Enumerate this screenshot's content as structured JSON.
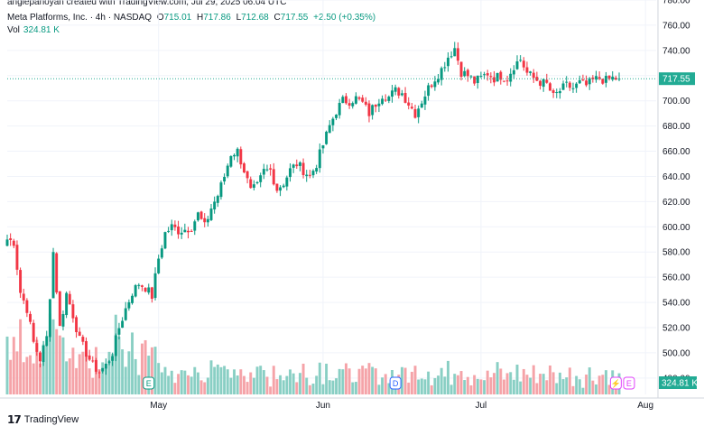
{
  "header": {
    "credit": "angiepanoyan created with TradingView.com, Jul 29, 2025 06:04 UTC",
    "symbol": "Meta Platforms, Inc. · 4h · NASDAQ",
    "o_label": "O",
    "o_value": "715.01",
    "h_label": "H",
    "h_value": "717.86",
    "l_label": "L",
    "l_value": "712.68",
    "c_label": "C",
    "c_value": "717.55",
    "change": "+2.50 (+0.35%)",
    "vol_label": "Vol",
    "vol_value": "324.81 K"
  },
  "footer": {
    "logo_text": "TradingView"
  },
  "colors": {
    "up": "#089981",
    "down": "#f23645",
    "up_vol": "#89cfc4",
    "down_vol": "#f5a3a8",
    "current": "#22ab94"
  },
  "markers": [
    {
      "label": "E",
      "candle": 43,
      "color": "#089981"
    },
    {
      "label": "D",
      "candle": 118,
      "color": "#2962ff"
    },
    {
      "label": "⚡",
      "candle": 185,
      "color": "#e040fb"
    },
    {
      "label": "E",
      "candle": 189,
      "color": "#e040fb"
    }
  ],
  "chart_data": {
    "type": "candlestick",
    "symbol": "META",
    "interval": "4h",
    "ylim": [
      467,
      780
    ],
    "y_ticks": [
      480,
      500,
      520,
      540,
      560,
      580,
      600,
      620,
      640,
      660,
      680,
      700,
      720,
      740,
      760,
      780
    ],
    "x_tick_labels": [
      {
        "label": "May",
        "candle": 46
      },
      {
        "label": "Jun",
        "candle": 96
      },
      {
        "label": "Jul",
        "candle": 144
      },
      {
        "label": "Aug",
        "candle": 194
      }
    ],
    "current_price": 717.55,
    "current_price_label": "717.55",
    "current_volume_label": "324.81 K",
    "anchors": [
      [
        0,
        590
      ],
      [
        2,
        588
      ],
      [
        4,
        548
      ],
      [
        6,
        535
      ],
      [
        8,
        508
      ],
      [
        10,
        495
      ],
      [
        12,
        512
      ],
      [
        14,
        580
      ],
      [
        16,
        520
      ],
      [
        18,
        547
      ],
      [
        20,
        530
      ],
      [
        22,
        510
      ],
      [
        24,
        500
      ],
      [
        26,
        490
      ],
      [
        28,
        485
      ],
      [
        30,
        490
      ],
      [
        32,
        500
      ],
      [
        34,
        520
      ],
      [
        36,
        535
      ],
      [
        38,
        548
      ],
      [
        40,
        555
      ],
      [
        42,
        552
      ],
      [
        44,
        545
      ],
      [
        46,
        575
      ],
      [
        48,
        595
      ],
      [
        50,
        600
      ],
      [
        52,
        597
      ],
      [
        54,
        598
      ],
      [
        56,
        600
      ],
      [
        58,
        610
      ],
      [
        60,
        600
      ],
      [
        62,
        615
      ],
      [
        64,
        625
      ],
      [
        66,
        640
      ],
      [
        68,
        658
      ],
      [
        70,
        660
      ],
      [
        72,
        645
      ],
      [
        74,
        628
      ],
      [
        76,
        632
      ],
      [
        78,
        644
      ],
      [
        80,
        645
      ],
      [
        82,
        630
      ],
      [
        84,
        635
      ],
      [
        86,
        645
      ],
      [
        88,
        650
      ],
      [
        90,
        645
      ],
      [
        92,
        640
      ],
      [
        94,
        650
      ],
      [
        96,
        665
      ],
      [
        98,
        680
      ],
      [
        100,
        692
      ],
      [
        102,
        700
      ],
      [
        104,
        700
      ],
      [
        106,
        702
      ],
      [
        108,
        698
      ],
      [
        110,
        690
      ],
      [
        112,
        698
      ],
      [
        114,
        705
      ],
      [
        116,
        703
      ],
      [
        118,
        708
      ],
      [
        120,
        706
      ],
      [
        122,
        698
      ],
      [
        124,
        690
      ],
      [
        126,
        700
      ],
      [
        128,
        710
      ],
      [
        130,
        718
      ],
      [
        132,
        725
      ],
      [
        134,
        735
      ],
      [
        136,
        742
      ],
      [
        138,
        723
      ],
      [
        140,
        720
      ],
      [
        142,
        715
      ],
      [
        144,
        718
      ],
      [
        146,
        722
      ],
      [
        148,
        718
      ],
      [
        150,
        720
      ],
      [
        152,
        718
      ],
      [
        154,
        728
      ],
      [
        156,
        733
      ],
      [
        158,
        722
      ],
      [
        160,
        718
      ],
      [
        162,
        715
      ],
      [
        164,
        713
      ],
      [
        166,
        703
      ],
      [
        168,
        708
      ],
      [
        170,
        712
      ],
      [
        172,
        710
      ],
      [
        174,
        714
      ],
      [
        176,
        712
      ],
      [
        178,
        716
      ],
      [
        180,
        718
      ],
      [
        182,
        716
      ],
      [
        184,
        718
      ],
      [
        186,
        717.55
      ]
    ],
    "volume_scale_k": [
      0,
      2200
    ]
  }
}
